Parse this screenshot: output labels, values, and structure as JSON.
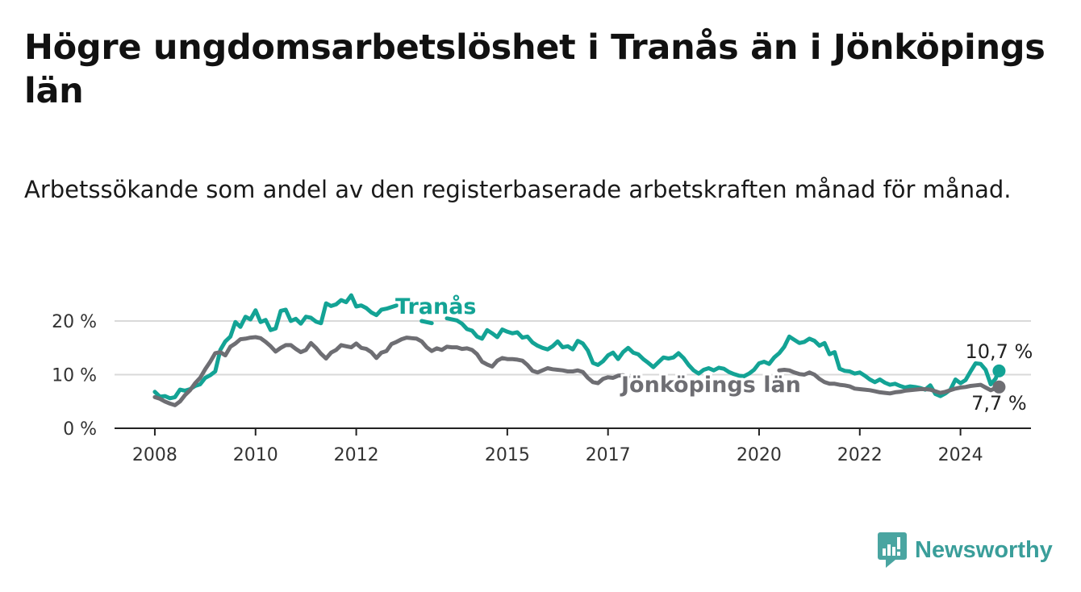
{
  "title": "Högre ungdomsarbetslöshet i Tranås än i Jönköpings län",
  "subtitle": "Arbetssökande som andel av den registerbaserade arbetskraften månad för månad.",
  "brand": {
    "name": "Newsworthy",
    "icon": "bar-chart-badge-icon",
    "color": "#3a9e9a"
  },
  "colors": {
    "tranas": "#13a395",
    "jonkoping": "#6e6e73",
    "axis": "#222222",
    "grid": "#d9d9d9"
  },
  "chart_data": {
    "type": "line",
    "title": "Högre ungdomsarbetslöshet i Tranås än i Jönköpings län",
    "xlabel": "",
    "ylabel": "",
    "xlim": [
      2007.2,
      2025.4
    ],
    "ylim": [
      0,
      20
    ],
    "grid": true,
    "x_ticks": [
      2008,
      2010,
      2012,
      2015,
      2017,
      2020,
      2022,
      2024
    ],
    "x_tick_labels": [
      "2008",
      "2010",
      "2012",
      "2015",
      "2017",
      "2020",
      "2022",
      "2024"
    ],
    "y_ticks": [
      0,
      10,
      20
    ],
    "y_tick_labels": [
      "0 %",
      "10 %",
      "20 %"
    ],
    "series": [
      {
        "name": "Tranås",
        "color": "#13a395",
        "end_label": "10,7 %",
        "points": [
          [
            2008.0,
            6.8
          ],
          [
            2008.1,
            5.9
          ],
          [
            2008.2,
            6.0
          ],
          [
            2008.3,
            5.6
          ],
          [
            2008.4,
            5.8
          ],
          [
            2008.5,
            7.2
          ],
          [
            2008.6,
            7.0
          ],
          [
            2008.7,
            7.3
          ],
          [
            2008.8,
            7.9
          ],
          [
            2008.9,
            8.2
          ],
          [
            2009.0,
            9.4
          ],
          [
            2009.1,
            9.9
          ],
          [
            2009.2,
            10.6
          ],
          [
            2009.3,
            14.6
          ],
          [
            2009.4,
            16.2
          ],
          [
            2009.5,
            17.1
          ],
          [
            2009.6,
            19.8
          ],
          [
            2009.7,
            18.9
          ],
          [
            2009.8,
            20.8
          ],
          [
            2009.9,
            20.3
          ],
          [
            2010.0,
            22.0
          ],
          [
            2010.1,
            19.8
          ],
          [
            2010.2,
            20.2
          ],
          [
            2010.3,
            18.3
          ],
          [
            2010.4,
            18.6
          ],
          [
            2010.5,
            21.9
          ],
          [
            2010.6,
            22.1
          ],
          [
            2010.7,
            20.0
          ],
          [
            2010.8,
            20.4
          ],
          [
            2010.9,
            19.5
          ],
          [
            2011.0,
            20.8
          ],
          [
            2011.1,
            20.6
          ],
          [
            2011.2,
            19.9
          ],
          [
            2011.3,
            19.6
          ],
          [
            2011.4,
            23.3
          ],
          [
            2011.5,
            22.8
          ],
          [
            2011.6,
            23.1
          ],
          [
            2011.7,
            23.9
          ],
          [
            2011.8,
            23.5
          ],
          [
            2011.9,
            24.8
          ],
          [
            2012.0,
            22.7
          ],
          [
            2012.1,
            22.9
          ],
          [
            2012.2,
            22.4
          ],
          [
            2012.3,
            21.6
          ],
          [
            2012.4,
            21.1
          ],
          [
            2012.5,
            22.1
          ],
          [
            2012.6,
            22.3
          ],
          [
            2012.7,
            22.6
          ],
          [
            2012.8,
            22.9
          ],
          null,
          [
            2013.3,
            20.0
          ],
          [
            2013.5,
            19.6
          ],
          null,
          [
            2013.8,
            20.5
          ],
          [
            2014.0,
            20.1
          ],
          [
            2014.1,
            19.5
          ],
          [
            2014.2,
            18.5
          ],
          [
            2014.3,
            18.2
          ],
          [
            2014.4,
            17.1
          ],
          [
            2014.5,
            16.7
          ],
          [
            2014.6,
            18.3
          ],
          [
            2014.7,
            17.7
          ],
          [
            2014.8,
            17.0
          ],
          [
            2014.9,
            18.4
          ],
          [
            2015.0,
            18.0
          ],
          [
            2015.1,
            17.7
          ],
          [
            2015.2,
            17.9
          ],
          [
            2015.3,
            16.9
          ],
          [
            2015.4,
            17.1
          ],
          [
            2015.5,
            16.0
          ],
          [
            2015.6,
            15.4
          ],
          [
            2015.7,
            15.0
          ],
          [
            2015.8,
            14.7
          ],
          [
            2015.9,
            15.3
          ],
          [
            2016.0,
            16.2
          ],
          [
            2016.1,
            15.1
          ],
          [
            2016.2,
            15.3
          ],
          [
            2016.3,
            14.7
          ],
          [
            2016.4,
            16.3
          ],
          [
            2016.5,
            15.8
          ],
          [
            2016.6,
            14.5
          ],
          [
            2016.7,
            12.2
          ],
          [
            2016.8,
            11.8
          ],
          [
            2016.9,
            12.5
          ],
          [
            2017.0,
            13.6
          ],
          [
            2017.1,
            14.1
          ],
          [
            2017.2,
            12.9
          ],
          [
            2017.3,
            14.2
          ],
          [
            2017.4,
            15.0
          ],
          [
            2017.5,
            14.1
          ],
          [
            2017.6,
            13.8
          ],
          [
            2017.7,
            12.9
          ],
          [
            2017.8,
            12.2
          ],
          [
            2017.9,
            11.4
          ],
          [
            2018.0,
            12.3
          ],
          [
            2018.1,
            13.2
          ],
          [
            2018.2,
            13.0
          ],
          [
            2018.3,
            13.2
          ],
          [
            2018.4,
            14.0
          ],
          [
            2018.5,
            13.1
          ],
          [
            2018.6,
            11.8
          ],
          [
            2018.7,
            10.8
          ],
          [
            2018.8,
            10.2
          ],
          [
            2018.9,
            10.9
          ],
          [
            2019.0,
            11.2
          ],
          [
            2019.1,
            10.8
          ],
          [
            2019.2,
            11.3
          ],
          [
            2019.3,
            11.1
          ],
          [
            2019.4,
            10.5
          ],
          [
            2019.5,
            10.1
          ],
          [
            2019.6,
            9.8
          ],
          [
            2019.7,
            9.7
          ],
          [
            2019.8,
            10.2
          ],
          [
            2019.9,
            10.9
          ],
          [
            2020.0,
            12.1
          ],
          [
            2020.1,
            12.4
          ],
          [
            2020.2,
            12.0
          ],
          [
            2020.3,
            13.2
          ],
          [
            2020.4,
            14.0
          ],
          [
            2020.5,
            15.2
          ],
          [
            2020.6,
            17.1
          ],
          [
            2020.7,
            16.5
          ],
          [
            2020.8,
            15.9
          ],
          [
            2020.9,
            16.1
          ],
          [
            2021.0,
            16.7
          ],
          [
            2021.1,
            16.3
          ],
          [
            2021.2,
            15.4
          ],
          [
            2021.3,
            15.9
          ],
          [
            2021.4,
            13.8
          ],
          [
            2021.5,
            14.2
          ],
          [
            2021.6,
            11.1
          ],
          [
            2021.7,
            10.7
          ],
          [
            2021.8,
            10.6
          ],
          [
            2021.9,
            10.2
          ],
          [
            2022.0,
            10.4
          ],
          [
            2022.1,
            9.8
          ],
          [
            2022.2,
            9.1
          ],
          [
            2022.3,
            8.6
          ],
          [
            2022.4,
            9.1
          ],
          [
            2022.5,
            8.5
          ],
          [
            2022.6,
            8.1
          ],
          [
            2022.7,
            8.3
          ],
          [
            2022.8,
            7.9
          ],
          [
            2022.9,
            7.6
          ],
          [
            2023.0,
            7.8
          ],
          [
            2023.1,
            7.7
          ],
          [
            2023.2,
            7.5
          ],
          [
            2023.3,
            7.2
          ],
          [
            2023.4,
            8.0
          ],
          [
            2023.5,
            6.4
          ],
          [
            2023.6,
            6.0
          ],
          [
            2023.7,
            6.5
          ],
          [
            2023.8,
            7.2
          ],
          [
            2023.9,
            9.1
          ],
          [
            2024.0,
            8.4
          ],
          [
            2024.1,
            9.0
          ],
          [
            2024.2,
            10.6
          ],
          [
            2024.3,
            12.1
          ],
          [
            2024.4,
            12.0
          ],
          [
            2024.5,
            10.9
          ],
          [
            2024.6,
            8.2
          ],
          [
            2024.7,
            9.3
          ],
          [
            2024.75,
            10.7
          ]
        ]
      },
      {
        "name": "Jönköpings län",
        "color": "#6e6e73",
        "end_label": "7,7 %",
        "points": [
          [
            2008.0,
            5.8
          ],
          [
            2008.1,
            5.5
          ],
          [
            2008.2,
            5.0
          ],
          [
            2008.3,
            4.6
          ],
          [
            2008.4,
            4.3
          ],
          [
            2008.5,
            5.0
          ],
          [
            2008.6,
            6.2
          ],
          [
            2008.7,
            7.1
          ],
          [
            2008.8,
            8.4
          ],
          [
            2008.9,
            9.4
          ],
          [
            2009.0,
            11.0
          ],
          [
            2009.1,
            12.4
          ],
          [
            2009.2,
            14.0
          ],
          [
            2009.3,
            14.2
          ],
          [
            2009.4,
            13.6
          ],
          [
            2009.5,
            15.2
          ],
          [
            2009.6,
            15.8
          ],
          [
            2009.7,
            16.6
          ],
          [
            2009.8,
            16.7
          ],
          [
            2009.9,
            16.9
          ],
          [
            2010.0,
            17.0
          ],
          [
            2010.1,
            16.8
          ],
          [
            2010.2,
            16.1
          ],
          [
            2010.3,
            15.3
          ],
          [
            2010.4,
            14.3
          ],
          [
            2010.5,
            15.0
          ],
          [
            2010.6,
            15.5
          ],
          [
            2010.7,
            15.5
          ],
          [
            2010.8,
            14.8
          ],
          [
            2010.9,
            14.2
          ],
          [
            2011.0,
            14.6
          ],
          [
            2011.1,
            15.9
          ],
          [
            2011.2,
            15.0
          ],
          [
            2011.3,
            13.9
          ],
          [
            2011.4,
            13.0
          ],
          [
            2011.5,
            14.1
          ],
          [
            2011.6,
            14.6
          ],
          [
            2011.7,
            15.5
          ],
          [
            2011.8,
            15.3
          ],
          [
            2011.9,
            15.1
          ],
          [
            2012.0,
            15.8
          ],
          [
            2012.1,
            15.0
          ],
          [
            2012.2,
            14.8
          ],
          [
            2012.3,
            14.2
          ],
          [
            2012.4,
            13.1
          ],
          [
            2012.5,
            14.1
          ],
          [
            2012.6,
            14.4
          ],
          [
            2012.7,
            15.7
          ],
          [
            2012.8,
            16.1
          ],
          [
            2012.9,
            16.6
          ],
          [
            2013.0,
            16.9
          ],
          [
            2013.1,
            16.8
          ],
          [
            2013.2,
            16.7
          ],
          [
            2013.3,
            16.2
          ],
          [
            2013.4,
            15.1
          ],
          [
            2013.5,
            14.4
          ],
          [
            2013.6,
            14.9
          ],
          [
            2013.7,
            14.6
          ],
          [
            2013.8,
            15.2
          ],
          [
            2013.9,
            15.1
          ],
          [
            2014.0,
            15.1
          ],
          [
            2014.1,
            14.8
          ],
          [
            2014.2,
            14.9
          ],
          [
            2014.3,
            14.6
          ],
          [
            2014.4,
            13.8
          ],
          [
            2014.5,
            12.4
          ],
          [
            2014.6,
            11.9
          ],
          [
            2014.7,
            11.5
          ],
          [
            2014.8,
            12.6
          ],
          [
            2014.9,
            13.1
          ],
          [
            2015.0,
            12.9
          ],
          [
            2015.1,
            12.9
          ],
          [
            2015.2,
            12.8
          ],
          [
            2015.3,
            12.6
          ],
          [
            2015.4,
            11.8
          ],
          [
            2015.5,
            10.7
          ],
          [
            2015.6,
            10.4
          ],
          [
            2015.7,
            10.8
          ],
          [
            2015.8,
            11.2
          ],
          [
            2015.9,
            11.0
          ],
          [
            2016.0,
            10.9
          ],
          [
            2016.1,
            10.8
          ],
          [
            2016.2,
            10.6
          ],
          [
            2016.3,
            10.6
          ],
          [
            2016.4,
            10.8
          ],
          [
            2016.5,
            10.5
          ],
          [
            2016.6,
            9.4
          ],
          [
            2016.7,
            8.6
          ],
          [
            2016.8,
            8.4
          ],
          [
            2016.9,
            9.2
          ],
          [
            2017.0,
            9.5
          ],
          [
            2017.1,
            9.4
          ],
          [
            2017.2,
            9.8
          ],
          [
            2017.3,
            9.9
          ],
          [
            2017.4,
            9.6
          ],
          null,
          [
            2020.4,
            10.8
          ],
          [
            2020.5,
            10.9
          ],
          [
            2020.6,
            10.8
          ],
          [
            2020.7,
            10.4
          ],
          [
            2020.8,
            10.1
          ],
          [
            2020.9,
            10.0
          ],
          [
            2021.0,
            10.4
          ],
          [
            2021.1,
            10.0
          ],
          [
            2021.2,
            9.2
          ],
          [
            2021.3,
            8.6
          ],
          [
            2021.4,
            8.3
          ],
          [
            2021.5,
            8.3
          ],
          [
            2021.6,
            8.1
          ],
          [
            2021.7,
            8.0
          ],
          [
            2021.8,
            7.8
          ],
          [
            2021.9,
            7.4
          ],
          [
            2022.0,
            7.3
          ],
          [
            2022.1,
            7.2
          ],
          [
            2022.2,
            7.1
          ],
          [
            2022.3,
            6.9
          ],
          [
            2022.4,
            6.7
          ],
          [
            2022.5,
            6.6
          ],
          [
            2022.6,
            6.5
          ],
          [
            2022.7,
            6.7
          ],
          [
            2022.8,
            6.8
          ],
          [
            2022.9,
            7.0
          ],
          [
            2023.0,
            7.1
          ],
          [
            2023.1,
            7.2
          ],
          [
            2023.2,
            7.3
          ],
          [
            2023.3,
            7.3
          ],
          [
            2023.4,
            7.2
          ],
          [
            2023.5,
            6.9
          ],
          [
            2023.6,
            6.6
          ],
          [
            2023.7,
            6.8
          ],
          [
            2023.8,
            7.1
          ],
          [
            2023.9,
            7.4
          ],
          [
            2024.0,
            7.6
          ],
          [
            2024.1,
            7.7
          ],
          [
            2024.2,
            7.9
          ],
          [
            2024.3,
            8.0
          ],
          [
            2024.4,
            8.1
          ],
          [
            2024.5,
            7.6
          ],
          [
            2024.6,
            7.1
          ],
          [
            2024.75,
            7.7
          ]
        ]
      }
    ]
  }
}
